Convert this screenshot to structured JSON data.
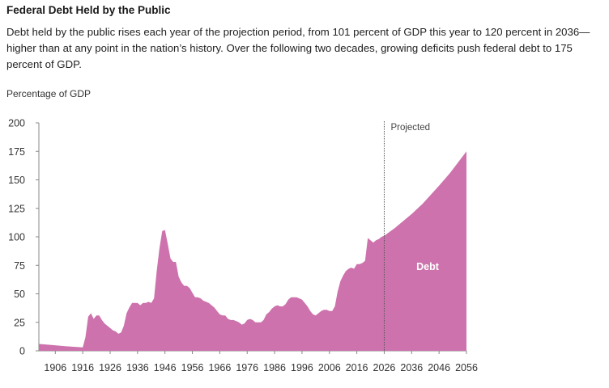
{
  "chart_data": {
    "type": "area",
    "title": "Federal Debt Held by the Public",
    "subtitle": "Debt held by the public rises each year of the projection period, from 101 percent of GDP this year to 120 percent in 2036—higher than at any point in the nation’s history. Over the following two decades, growing deficits push federal debt to 175 percent of GDP.",
    "ylabel": "Percentage of GDP",
    "xlabel": "",
    "xlim": [
      1900,
      2056
    ],
    "ylim": [
      0,
      200
    ],
    "yticks": [
      "0",
      "25",
      "50",
      "75",
      "100",
      "125",
      "150",
      "175",
      "200"
    ],
    "xticks": [
      "1906",
      "1916",
      "1926",
      "1936",
      "1946",
      "1956",
      "1966",
      "1976",
      "1986",
      "1996",
      "2006",
      "2016",
      "2026",
      "2036",
      "2046",
      "2056"
    ],
    "grid": false,
    "color": "#cd72ad",
    "projection_marker": {
      "year": 2026,
      "label": "Projected"
    },
    "series_label": "Debt",
    "x": [
      1900,
      1905,
      1910,
      1916,
      1917,
      1918,
      1919,
      1920,
      1921,
      1922,
      1923,
      1924,
      1925,
      1926,
      1927,
      1928,
      1929,
      1930,
      1931,
      1932,
      1933,
      1934,
      1935,
      1936,
      1937,
      1938,
      1939,
      1940,
      1941,
      1942,
      1943,
      1944,
      1945,
      1946,
      1947,
      1948,
      1949,
      1950,
      1951,
      1952,
      1953,
      1954,
      1955,
      1956,
      1957,
      1958,
      1959,
      1960,
      1961,
      1962,
      1963,
      1964,
      1965,
      1966,
      1967,
      1968,
      1969,
      1970,
      1971,
      1972,
      1973,
      1974,
      1975,
      1976,
      1977,
      1978,
      1979,
      1980,
      1981,
      1982,
      1983,
      1984,
      1985,
      1986,
      1987,
      1988,
      1989,
      1990,
      1991,
      1992,
      1993,
      1994,
      1995,
      1996,
      1997,
      1998,
      1999,
      2000,
      2001,
      2002,
      2003,
      2004,
      2005,
      2006,
      2007,
      2008,
      2009,
      2010,
      2011,
      2012,
      2013,
      2014,
      2015,
      2016,
      2017,
      2018,
      2019,
      2020,
      2021,
      2022,
      2023,
      2024,
      2025,
      2026,
      2030,
      2036,
      2040,
      2046,
      2050,
      2056
    ],
    "values": [
      6,
      5,
      4,
      3,
      12,
      30,
      33,
      28,
      31,
      31,
      27,
      24,
      22,
      20,
      18,
      17,
      15,
      16,
      22,
      33,
      38,
      42,
      42,
      42,
      40,
      42,
      42,
      43,
      42,
      46,
      70,
      90,
      105,
      106,
      94,
      81,
      78,
      78,
      65,
      60,
      57,
      57,
      55,
      51,
      47,
      47,
      46,
      44,
      43,
      42,
      40,
      38,
      35,
      32,
      31,
      31,
      28,
      27,
      27,
      26,
      25,
      23,
      24,
      27,
      28,
      27,
      25,
      25,
      25,
      27,
      32,
      34,
      37,
      39,
      40,
      39,
      39,
      41,
      45,
      47,
      47,
      47,
      46,
      45,
      42,
      39,
      35,
      32,
      31,
      33,
      35,
      36,
      36,
      35,
      35,
      39,
      52,
      61,
      66,
      70,
      72,
      73,
      72,
      76,
      76,
      77,
      79,
      99,
      97,
      95,
      97,
      98,
      100,
      101,
      108,
      120,
      129,
      145,
      156,
      175
    ]
  }
}
